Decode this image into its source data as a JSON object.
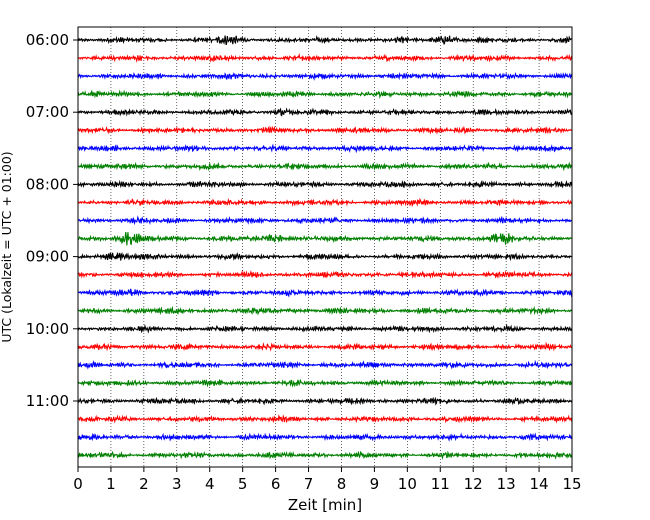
{
  "chart_data": {
    "type": "line",
    "title": "",
    "xlabel": "Zeit  [min]",
    "ylabel": "UTC (Lokalzeit = UTC + 01:00)",
    "xlim": [
      0,
      15
    ],
    "xticks": [
      "0",
      "1",
      "2",
      "3",
      "4",
      "5",
      "6",
      "7",
      "8",
      "9",
      "10",
      "11",
      "12",
      "13",
      "14",
      "15"
    ],
    "yticks": [
      {
        "label": "06:00",
        "row": 0
      },
      {
        "label": "07:00",
        "row": 4
      },
      {
        "label": "08:00",
        "row": 8
      },
      {
        "label": "09:00",
        "row": 12
      },
      {
        "label": "10:00",
        "row": 16
      },
      {
        "label": "11:00",
        "row": 20
      }
    ],
    "grid": "vertical dotted at each minute",
    "trace_minutes": 15,
    "trace_start": "06:00",
    "trace_count": 24,
    "trace_colors": [
      "#000000",
      "#ff0000",
      "#0000ff",
      "#008000"
    ],
    "events": [
      {
        "row": 0,
        "minute": 4.5,
        "amplitude": 1.6
      },
      {
        "row": 0,
        "minute": 11.2,
        "amplitude": 1.7
      },
      {
        "row": 3,
        "minute": 1.3,
        "amplitude": 1.1
      },
      {
        "row": 4,
        "minute": 6.2,
        "amplitude": 1.3
      },
      {
        "row": 6,
        "minute": 1.3,
        "amplitude": 1.1
      },
      {
        "row": 10,
        "minute": 13.5,
        "amplitude": 1.0
      },
      {
        "row": 11,
        "minute": 1.5,
        "amplitude": 2.4
      },
      {
        "row": 11,
        "minute": 6.0,
        "amplitude": 1.7
      },
      {
        "row": 11,
        "minute": 12.8,
        "amplitude": 1.9
      },
      {
        "row": 12,
        "minute": 1.1,
        "amplitude": 1.8
      },
      {
        "row": 14,
        "minute": 1.7,
        "amplitude": 1.3
      },
      {
        "row": 18,
        "minute": 2.9,
        "amplitude": 1.0
      },
      {
        "row": 21,
        "minute": 14.3,
        "amplitude": 1.0
      },
      {
        "row": 22,
        "minute": 1.1,
        "amplitude": 1.0
      },
      {
        "row": 23,
        "minute": 5.4,
        "amplitude": 1.0
      }
    ]
  }
}
